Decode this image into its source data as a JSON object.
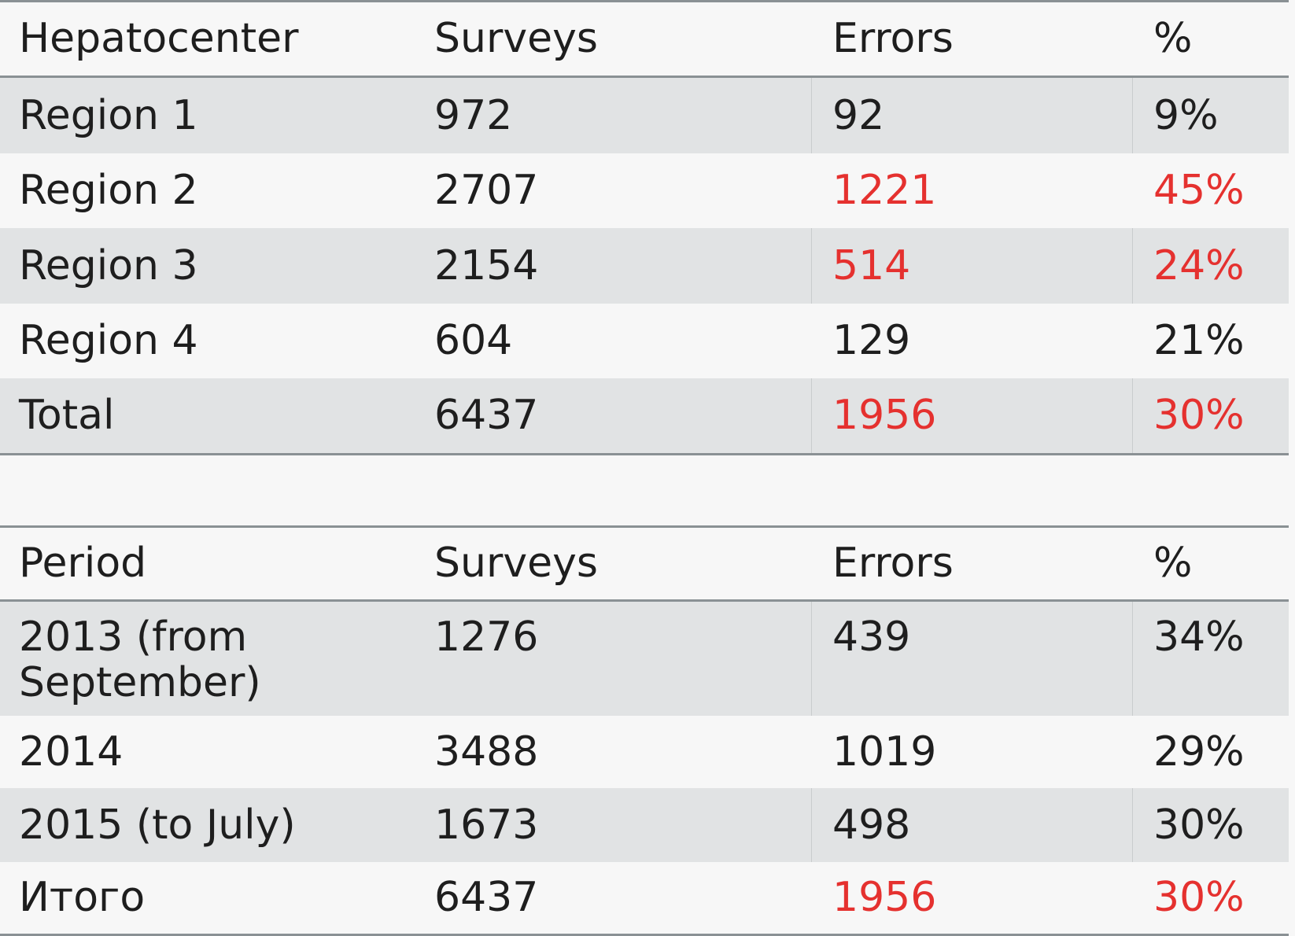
{
  "table1": {
    "headers": [
      "Hepatocenter",
      "Surveys",
      "Errors",
      "%"
    ],
    "rows": [
      [
        "Region 1",
        "972",
        "92",
        "9%"
      ],
      [
        "Region 2",
        "2707",
        "1221",
        "45%"
      ],
      [
        "Region 3",
        "2154",
        "514",
        "24%"
      ],
      [
        "Region 4",
        "604",
        "129",
        "21%"
      ],
      [
        "Total",
        "6437",
        "1956",
        "30%"
      ]
    ]
  },
  "table2": {
    "headers": [
      "Period",
      "Surveys",
      "Errors",
      "%"
    ],
    "rows": [
      [
        "2013 (from September)",
        "1276",
        "439",
        "34%"
      ],
      [
        "2014",
        "3488",
        "1019",
        "29%"
      ],
      [
        "2015 (to July)",
        "1673",
        "498",
        "30%"
      ],
      [
        "Итого",
        "6437",
        "1956",
        "30%"
      ]
    ]
  },
  "colors": {
    "highlight": "#e5312f",
    "text": "#1e1e1e",
    "shaded_row": "#e1e3e4",
    "rule": "#8a9194"
  }
}
